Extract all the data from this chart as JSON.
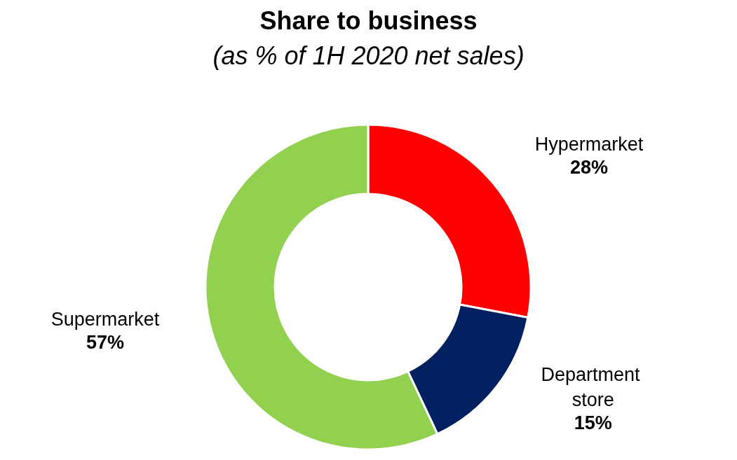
{
  "chart_data": {
    "type": "donut",
    "title": "Share to business",
    "subtitle": "(as % of 1H 2020 net sales)",
    "categories": [
      "Hypermarket",
      "Department store",
      "Supermarket"
    ],
    "values": [
      28,
      15,
      57
    ],
    "value_labels": [
      "28%",
      "15%",
      "57%"
    ],
    "colors": [
      "#ff0000",
      "#002060",
      "#92d050"
    ]
  }
}
